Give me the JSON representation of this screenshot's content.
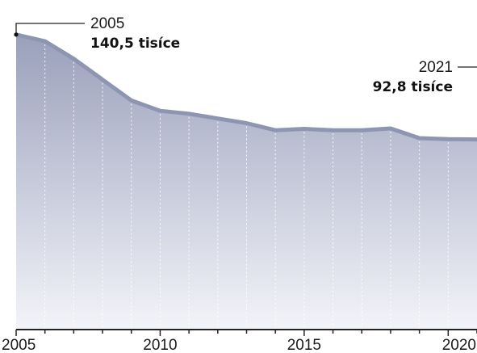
{
  "chart_data": {
    "type": "area",
    "x": [
      2005,
      2006,
      2007,
      2008,
      2009,
      2010,
      2011,
      2012,
      2013,
      2014,
      2015,
      2016,
      2017,
      2018,
      2019,
      2020,
      2021
    ],
    "values": [
      140.5,
      137.5,
      129.5,
      120.0,
      110.5,
      105.8,
      104.5,
      102.3,
      100.2,
      97.0,
      97.6,
      97.0,
      97.0,
      97.8,
      93.4,
      92.9,
      92.8
    ],
    "xticks": [
      2005,
      2010,
      2015,
      2020
    ],
    "xtick_labels": [
      "2005",
      "2010",
      "2015",
      "2020"
    ],
    "xlim": [
      2005,
      2021
    ],
    "ylim": [
      0,
      150
    ],
    "grid": "vertical dotted lines at each year",
    "annotations": [
      {
        "year_label": "2005",
        "value_label": "140,5 tisíce",
        "x": 2005,
        "y": 140.5,
        "side": "left"
      },
      {
        "year_label": "2021",
        "value_label": "92,8 tisíce",
        "x": 2021,
        "y": 92.8,
        "side": "right"
      }
    ],
    "colors": {
      "line": "#8e95b1",
      "area_top": "#9aa0bb",
      "area_bottom": "#f3f4f9",
      "grid": "#ffffff",
      "axis": "#222222"
    }
  }
}
